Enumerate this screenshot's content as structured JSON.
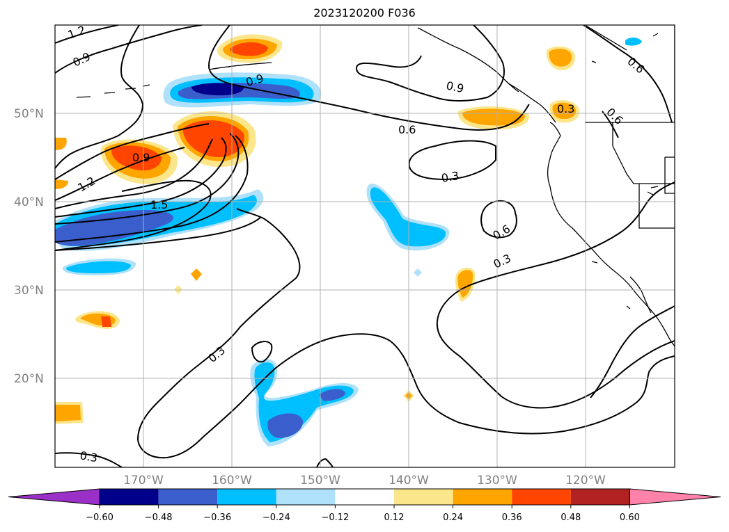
{
  "title": "2023120200 F036",
  "latitude_labels": [
    {
      "lat": 50,
      "label": "50°N"
    },
    {
      "lat": 40,
      "label": "40°N"
    },
    {
      "lat": 30,
      "label": "30°N"
    },
    {
      "lat": 20,
      "label": "20°N"
    }
  ],
  "longitude_labels": [
    {
      "lon": -170,
      "label": "170°W"
    },
    {
      "lon": -160,
      "label": "160°W"
    },
    {
      "lon": -150,
      "label": "150°W"
    },
    {
      "lon": -140,
      "label": "140°W"
    },
    {
      "lon": -130,
      "label": "130°W"
    },
    {
      "lon": -120,
      "label": "120°W"
    }
  ],
  "contour_labels": [
    "1.2",
    "0.9",
    "0.9",
    "0.9",
    "1.2",
    "1.5",
    "0.6",
    "0.9",
    "0.3",
    "0.6",
    "0.3",
    "0.6",
    "0.3",
    "0.6",
    "0.3",
    "0.3"
  ],
  "colorbar": {
    "ticks": [
      "−0.60",
      "−0.48",
      "−0.36",
      "−0.24",
      "−0.12",
      "0.12",
      "0.24",
      "0.36",
      "0.48",
      "0.60"
    ],
    "colors": [
      "#9b30c8",
      "#00008b",
      "#3a5fcd",
      "#00bfff",
      "#afe1fb",
      "#ffffff",
      "#fce68c",
      "#ffa500",
      "#ff4500",
      "#b22222",
      "#ff82ab"
    ]
  }
}
